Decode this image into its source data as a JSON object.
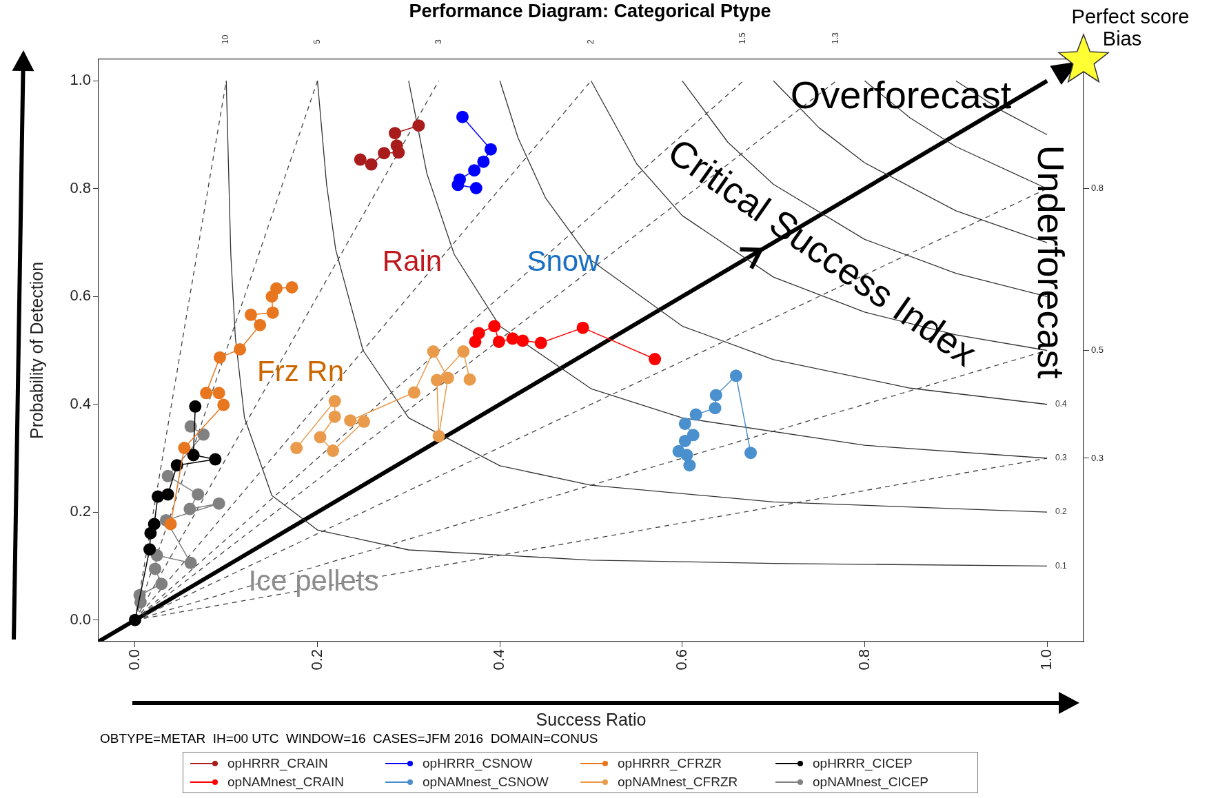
{
  "chart_data": {
    "type": "line",
    "title": "Performance Diagram: Categorical Ptype",
    "xlabel": "Success Ratio",
    "ylabel": "Probability of Detection",
    "x2label": "Bias",
    "xlim": [
      -0.04,
      1.04
    ],
    "ylim": [
      -0.04,
      1.04
    ],
    "y2lim": [
      -0.04,
      1.04
    ],
    "xticks": [
      {
        "value": 0,
        "label": "0.0"
      },
      0.2,
      0.4,
      0.6,
      0.8,
      {
        "value": 1,
        "label": "1.0"
      }
    ],
    "yticks": [
      {
        "value": 0,
        "label": "0.0"
      },
      0.2,
      0.4,
      0.6,
      0.8,
      {
        "value": 1,
        "label": "1.0"
      }
    ],
    "y2ticks": [
      0.3,
      0.5,
      0.8
    ],
    "marker": "circle",
    "legend": "bottom",
    "series": [
      {
        "name": "opHRRR_CRAIN",
        "color": "#a81c1c",
        "x": [
          0.311,
          0.285,
          0.287,
          0.289,
          0.273,
          0.259,
          0.247
        ],
        "values": [
          0.917,
          0.903,
          0.88,
          0.867,
          0.866,
          0.845,
          0.854
        ]
      },
      {
        "name": "opNAMnest_CRAIN",
        "color": "#ff0000",
        "x": [
          0.373,
          0.377,
          0.394,
          0.399,
          0.414,
          0.425,
          0.445,
          0.491,
          0.57
        ],
        "values": [
          0.516,
          0.532,
          0.545,
          0.516,
          0.522,
          0.518,
          0.514,
          0.542,
          0.484
        ]
      },
      {
        "name": "opHRRR_CSNOW",
        "color": "#0000ff",
        "x": [
          0.359,
          0.39,
          0.382,
          0.372,
          0.356,
          0.354,
          0.374
        ],
        "values": [
          0.933,
          0.873,
          0.85,
          0.834,
          0.817,
          0.807,
          0.801
        ]
      },
      {
        "name": "opNAMnest_CSNOW",
        "color": "#4a8fce",
        "x": [
          0.608,
          0.605,
          0.596,
          0.603,
          0.612,
          0.603,
          0.615,
          0.636,
          0.637,
          0.659,
          0.675
        ],
        "values": [
          0.287,
          0.306,
          0.313,
          0.332,
          0.343,
          0.364,
          0.381,
          0.393,
          0.417,
          0.453,
          0.31
        ]
      },
      {
        "name": "opHRRR_CFRZR",
        "color": "#e8761e",
        "x": [
          0.172,
          0.155,
          0.15,
          0.151,
          0.127,
          0.137,
          0.115,
          0.093,
          0.078,
          0.092,
          0.097,
          0.054,
          0.039
        ],
        "values": [
          0.617,
          0.615,
          0.6,
          0.57,
          0.566,
          0.547,
          0.502,
          0.487,
          0.421,
          0.421,
          0.399,
          0.319,
          0.178
        ]
      },
      {
        "name": "opNAMnest_CFRZR",
        "color": "#e99a4a",
        "x": [
          0.177,
          0.219,
          0.219,
          0.203,
          0.217,
          0.251,
          0.236,
          0.306,
          0.327,
          0.343,
          0.333,
          0.331,
          0.36,
          0.367
        ],
        "values": [
          0.319,
          0.406,
          0.377,
          0.339,
          0.314,
          0.368,
          0.37,
          0.422,
          0.498,
          0.449,
          0.341,
          0.445,
          0.498,
          0.446
        ]
      },
      {
        "name": "opHRRR_CICEP",
        "color": "#000000",
        "x": [
          0.066,
          0.064,
          0.088,
          0.046,
          0.036,
          0.025,
          0.021,
          0.017,
          0.016,
          0.0
        ],
        "values": [
          0.396,
          0.306,
          0.298,
          0.287,
          0.233,
          0.229,
          0.178,
          0.161,
          0.131,
          0.0
        ]
      },
      {
        "name": "opNAMnest_CICEP",
        "color": "#808080",
        "x": [
          0.061,
          0.075,
          0.036,
          0.069,
          0.06,
          0.092,
          0.034,
          0.061,
          0.024,
          0.022,
          0.029,
          0.005,
          0.006
        ],
        "values": [
          0.359,
          0.344,
          0.267,
          0.233,
          0.206,
          0.216,
          0.185,
          0.106,
          0.12,
          0.095,
          0.067,
          0.046,
          0.033
        ]
      },
      {
        "color": "#333333",
        "marker": "none",
        "line_style": "solid",
        "x": [
          0.1,
          0.105,
          0.11,
          0.12,
          0.15,
          0.2,
          0.3,
          0.5,
          0.7,
          1
        ],
        "values": [
          1,
          0.678,
          0.524,
          0.375,
          0.231,
          0.167,
          0.13,
          0.111,
          0.105,
          0.1
        ]
      },
      {
        "color": "#333333",
        "marker": "none",
        "line_style": "solid",
        "x": [
          0.2,
          0.21,
          0.22,
          0.25,
          0.3,
          0.4,
          0.5,
          0.7,
          1
        ],
        "values": [
          1,
          0.808,
          0.687,
          0.5,
          0.375,
          0.286,
          0.25,
          0.219,
          0.2
        ]
      },
      {
        "color": "#333333",
        "marker": "none",
        "line_style": "solid",
        "x": [
          0.3,
          0.32,
          0.35,
          0.4,
          0.5,
          0.6,
          0.8,
          1
        ],
        "values": [
          1,
          0.828,
          0.678,
          0.545,
          0.429,
          0.375,
          0.324,
          0.3
        ]
      },
      {
        "color": "#333333",
        "marker": "none",
        "line_style": "solid",
        "x": [
          0.4,
          0.42,
          0.45,
          0.5,
          0.6,
          0.7,
          0.85,
          1
        ],
        "values": [
          1,
          0.894,
          0.783,
          0.667,
          0.545,
          0.483,
          0.43,
          0.4
        ]
      },
      {
        "color": "#333333",
        "marker": "none",
        "line_style": "solid",
        "x": [
          0.5,
          0.55,
          0.6,
          0.7,
          0.8,
          0.9,
          1
        ],
        "values": [
          1,
          0.846,
          0.75,
          0.636,
          0.571,
          0.529,
          0.5
        ]
      },
      {
        "color": "#333333",
        "marker": "none",
        "line_style": "solid",
        "x": [
          0.6,
          0.65,
          0.7,
          0.8,
          0.9,
          1
        ],
        "values": [
          1,
          0.886,
          0.808,
          0.706,
          0.643,
          0.6
        ]
      },
      {
        "color": "#333333",
        "marker": "none",
        "line_style": "solid",
        "x": [
          0.7,
          0.75,
          0.8,
          0.9,
          1
        ],
        "values": [
          1,
          0.913,
          0.848,
          0.759,
          0.7
        ]
      },
      {
        "color": "#333333",
        "marker": "none",
        "line_style": "solid",
        "x": [
          0.8,
          0.85,
          0.9,
          1
        ],
        "values": [
          1,
          0.931,
          0.878,
          0.8
        ]
      },
      {
        "color": "#333333",
        "marker": "none",
        "line_style": "solid",
        "x": [
          0.9,
          0.95,
          1
        ],
        "values": [
          1,
          0.945,
          0.9
        ]
      },
      {
        "color": "#444444",
        "marker": "none",
        "line_style": "dashed",
        "x": [
          0,
          0.1
        ],
        "values": [
          0,
          1
        ]
      },
      {
        "color": "#444444",
        "marker": "none",
        "line_style": "dashed",
        "x": [
          0,
          0.2
        ],
        "values": [
          0,
          1
        ]
      },
      {
        "color": "#444444",
        "marker": "none",
        "line_style": "dashed",
        "x": [
          0,
          0.333
        ],
        "values": [
          0,
          1
        ]
      },
      {
        "color": "#444444",
        "marker": "none",
        "line_style": "dashed",
        "x": [
          0,
          0.5
        ],
        "values": [
          0,
          1
        ]
      },
      {
        "color": "#444444",
        "marker": "none",
        "line_style": "dashed",
        "x": [
          0,
          0.667
        ],
        "values": [
          0,
          1
        ]
      },
      {
        "color": "#444444",
        "marker": "none",
        "line_style": "dashed",
        "x": [
          0,
          0.769
        ],
        "values": [
          0,
          1
        ]
      },
      {
        "color": "#444444",
        "marker": "none",
        "line_style": "dashed",
        "x": [
          0,
          1
        ],
        "values": [
          0,
          0.8
        ]
      },
      {
        "color": "#444444",
        "marker": "none",
        "line_style": "dashed",
        "x": [
          0,
          1
        ],
        "values": [
          0,
          0.5
        ]
      },
      {
        "color": "#444444",
        "marker": "none",
        "line_style": "dashed",
        "x": [
          0,
          1
        ],
        "values": [
          0,
          0.3
        ]
      },
      {
        "color": "#000000",
        "marker": "none",
        "line_style": "solid",
        "x": [
          -0.04,
          1.0
        ],
        "values": [
          -0.04,
          1.0
        ]
      }
    ],
    "annotations": [
      "Rain",
      "Snow",
      "Frz Rn",
      "Ice pellets",
      "Overforecast",
      "Critical Success Index",
      "Underforecast",
      "Perfect score",
      "10",
      "5",
      "3",
      "2",
      "1.5",
      "1.3",
      "0.1",
      "0.2",
      "0.3",
      "0.4",
      "OBTYPE=METAR  IH=00 UTC  WINDOW=16  CASES=JFM 2016  DOMAIN=CONUS"
    ]
  }
}
